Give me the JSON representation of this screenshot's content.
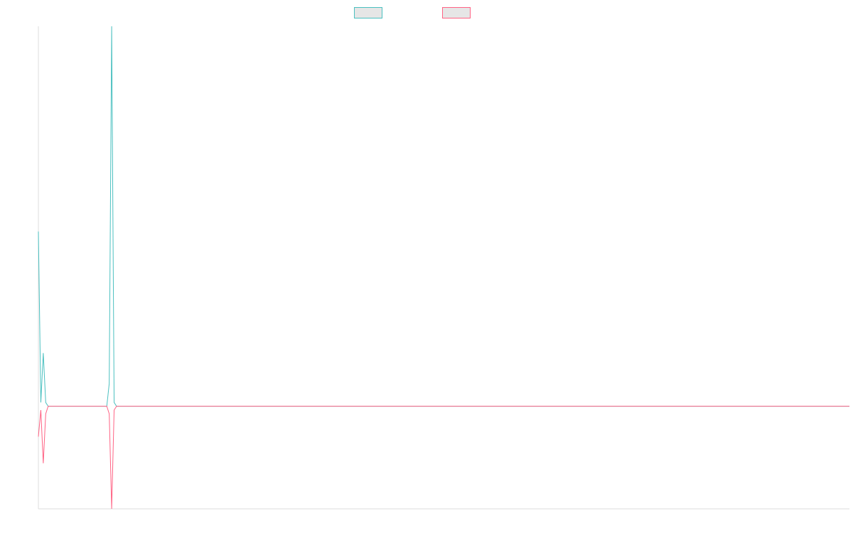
{
  "chart_data": {
    "type": "line",
    "x": [
      0,
      1,
      2,
      3,
      4,
      28,
      29,
      30,
      31,
      32,
      332
    ],
    "series": [
      {
        "color": "#4bc0c0",
        "values": [
          46,
          1,
          14,
          1,
          0,
          0,
          6,
          100,
          1,
          0,
          0
        ]
      },
      {
        "color": "#ff6384",
        "values": [
          -8,
          -1,
          -15,
          -2,
          0,
          0,
          -2,
          -27,
          -1,
          0,
          0
        ]
      }
    ],
    "xlim": [
      0,
      332
    ],
    "ylim": [
      -27,
      100
    ]
  }
}
